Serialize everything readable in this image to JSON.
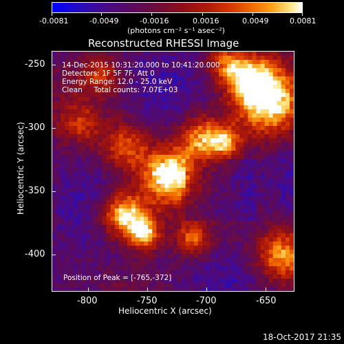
{
  "colorbar": {
    "tick_labels": [
      "-0.0081",
      "-0.0049",
      "-0.0016",
      "0.0016",
      "0.0049",
      "0.0081"
    ],
    "units_label": "(photons cm⁻² s⁻¹ asec⁻²)"
  },
  "title": "Reconstructed RHESSI Image",
  "annotations": {
    "time_range": "14-Dec-2015 10:31:20.000 to 10:41:20.000",
    "detectors": "Detectors: 1F 5F 7F, Att 0",
    "energy_range": "Energy Range: 12.0 - 25.0 keV",
    "algorithm": "Clean     Total counts: 7.07E+03",
    "peak_position": "Position of Peak = [-765,-372]"
  },
  "chart_data": {
    "type": "heatmap",
    "title": "Reconstructed RHESSI Image",
    "xlabel": "Heliocentric X (arcsec)",
    "ylabel": "Heliocentric Y (arcsec)",
    "xlim": [
      -826,
      -634
    ],
    "ylim": [
      -430,
      -237
    ],
    "x_ticks": [
      "-800",
      "-750",
      "-700",
      "-650"
    ],
    "y_ticks": [
      "-250",
      "-300",
      "-350",
      "-400"
    ],
    "colorbar_range": [
      -0.0081,
      0.0081
    ],
    "peak_position": [
      -765,
      -372
    ]
  },
  "footer": {
    "timestamp": "18-Oct-2017 21:35"
  },
  "colors": {
    "background": "#000000",
    "foreground": "#ffffff"
  }
}
